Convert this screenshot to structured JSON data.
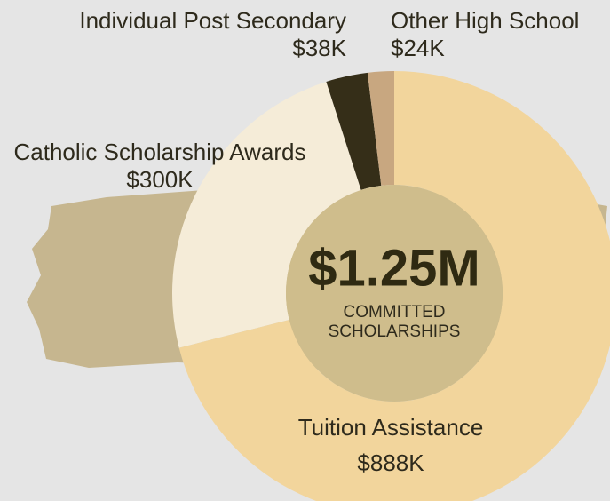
{
  "chart_data": {
    "type": "donut",
    "categories": [
      "Tuition Assistance",
      "Catholic Scholarship Awards",
      "Individual Post Secondary",
      "Other High School"
    ],
    "values": [
      888,
      300,
      38,
      24
    ],
    "value_labels": [
      "$888K",
      "$300K",
      "$38K",
      "$24K"
    ],
    "colors": [
      "#f2d59c",
      "#f5ecd8",
      "#352e18",
      "#c8a780"
    ],
    "center_value": "$1.25M",
    "center_label": [
      "COMMITTED",
      "SCHOLARSHIPS"
    ]
  }
}
